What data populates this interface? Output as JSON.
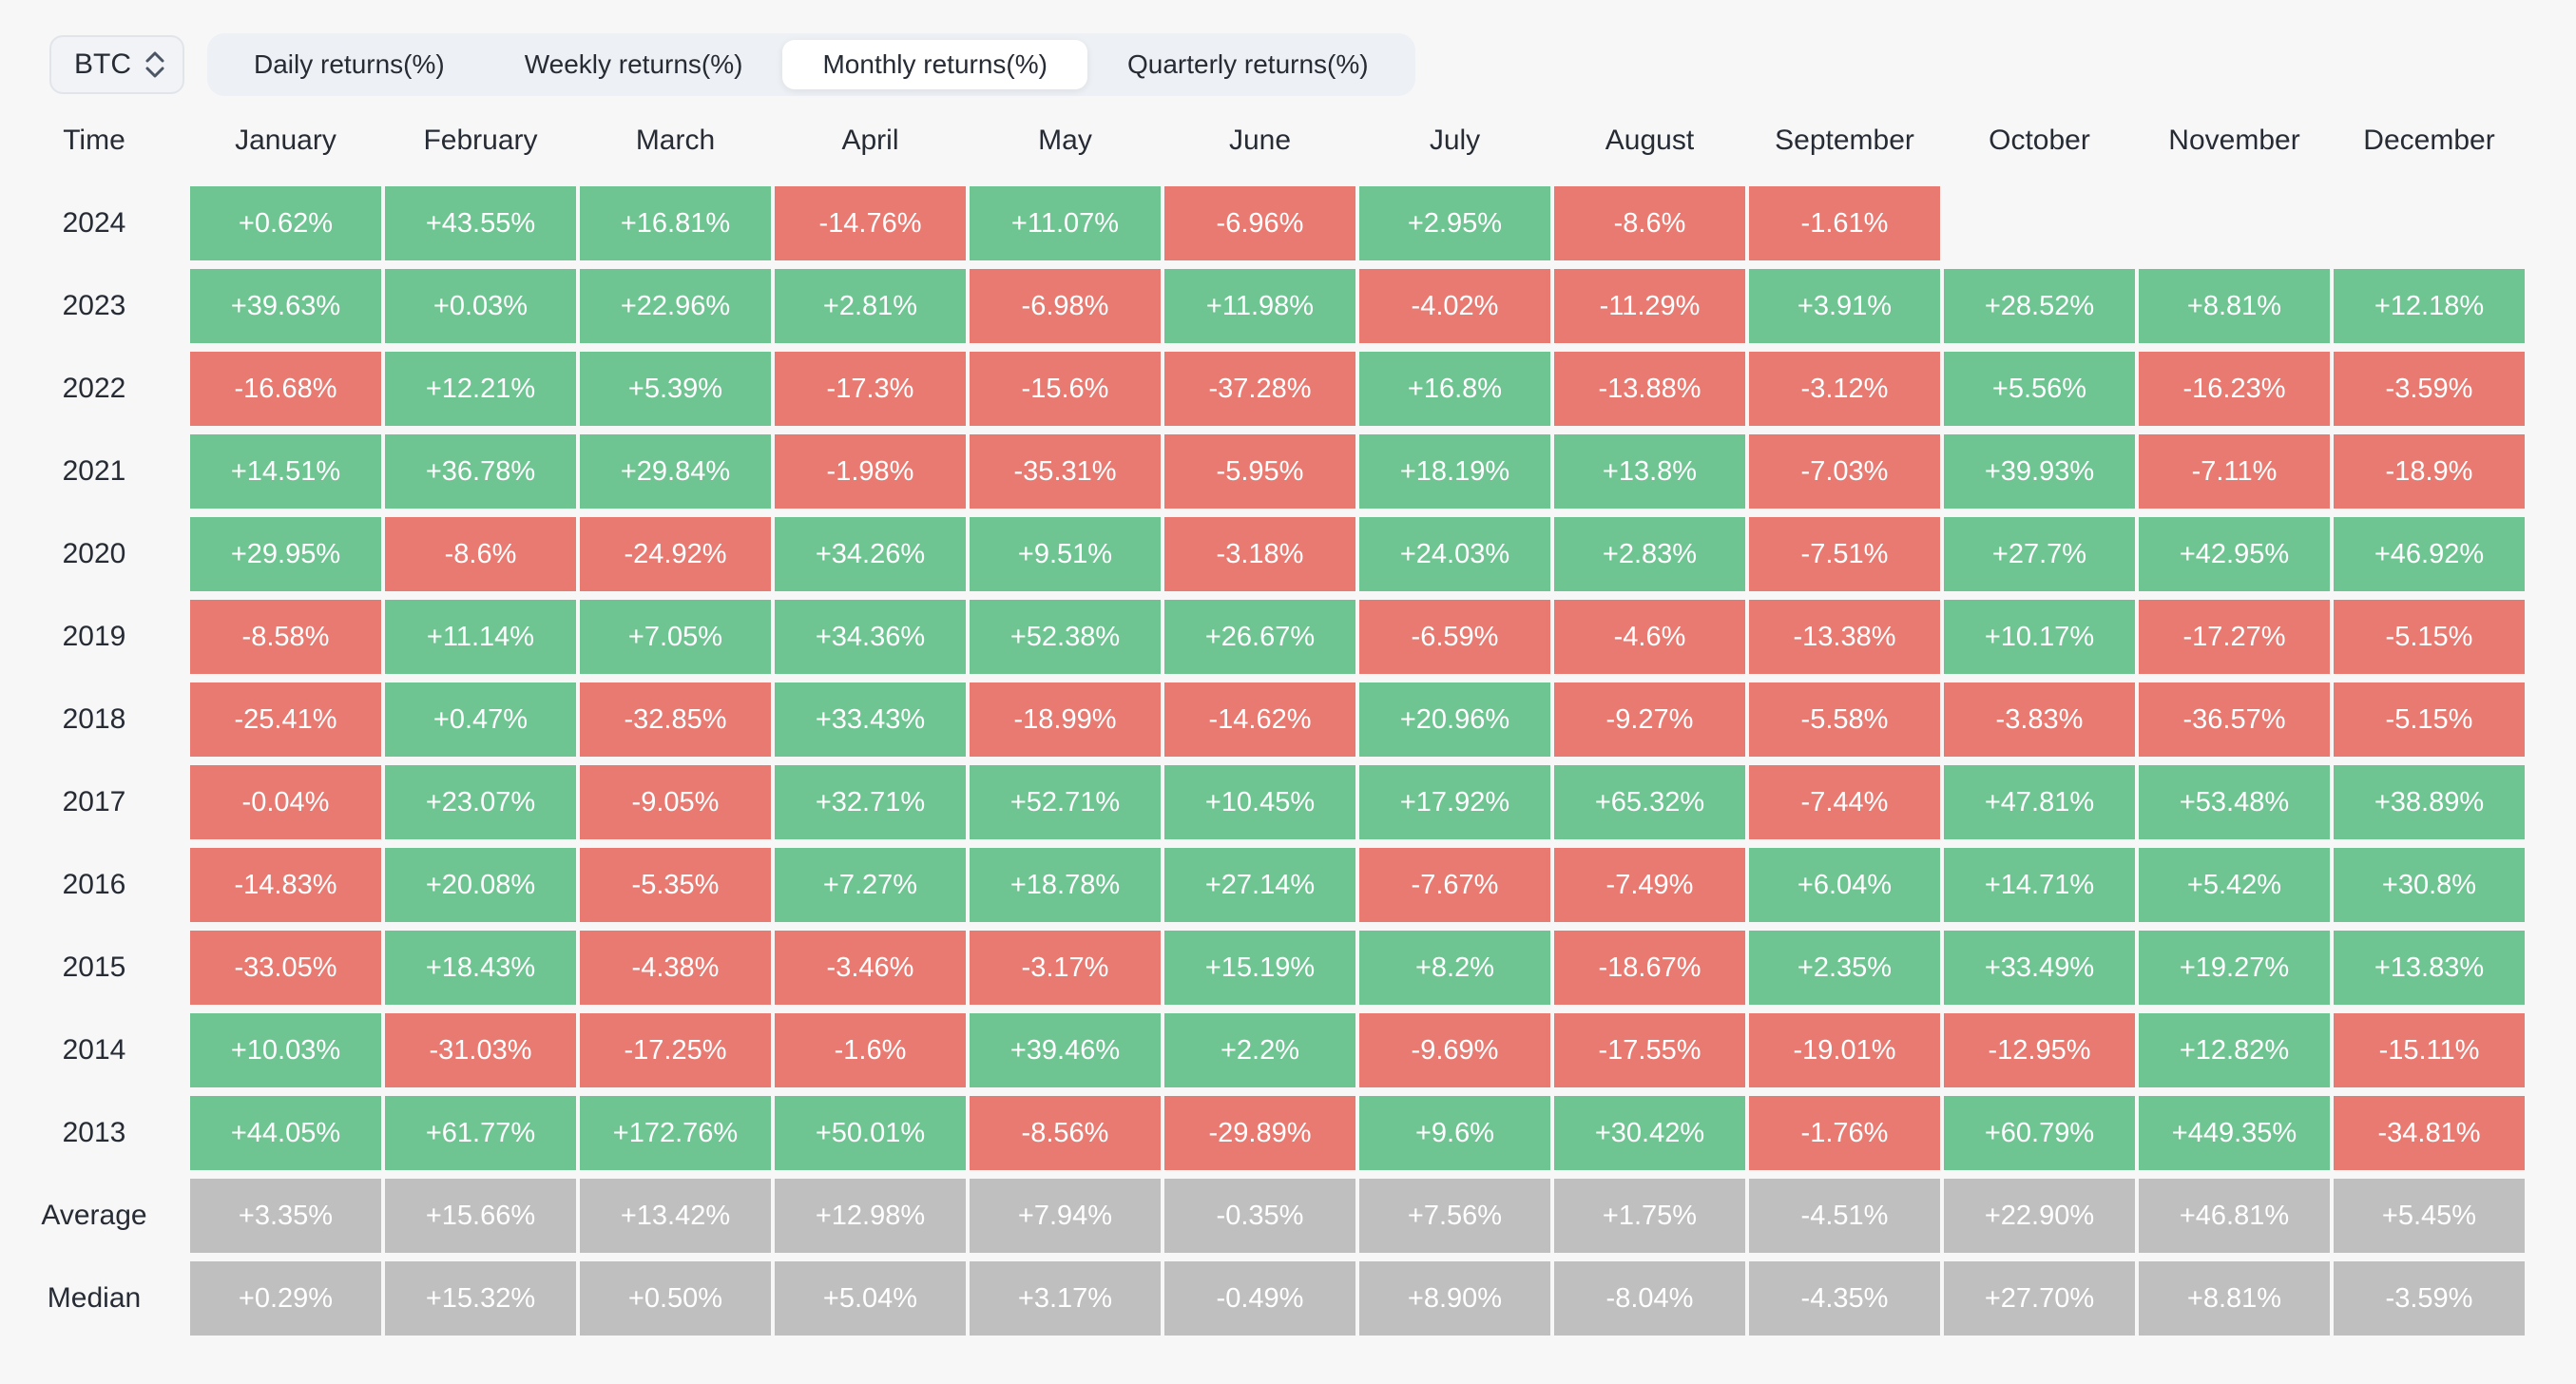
{
  "header": {
    "asset_selector": {
      "value": "BTC",
      "icon": "updown-chevron-icon"
    },
    "tabs": [
      {
        "label": "Daily returns(%)",
        "active": false
      },
      {
        "label": "Weekly returns(%)",
        "active": false
      },
      {
        "label": "Monthly returns(%)",
        "active": true
      },
      {
        "label": "Quarterly returns(%)",
        "active": false
      }
    ]
  },
  "colors": {
    "positive": "#6FC592",
    "negative": "#E97A72",
    "summary": "#BFBFBF",
    "page-bg": "#F7F7F8",
    "tabbar-bg": "#EDF0F4",
    "pill-bg": "#FFFFFF",
    "text-dark": "#262B34",
    "cell-text": "#FFFFFF",
    "select-bg": "#F1F3F6",
    "select-border": "#E1E5EA"
  },
  "chart_data": {
    "type": "heatmap",
    "title": "Monthly returns(%)",
    "asset": "BTC",
    "row_header_label": "Time",
    "columns": [
      "January",
      "February",
      "March",
      "April",
      "May",
      "June",
      "July",
      "August",
      "September",
      "October",
      "November",
      "December"
    ],
    "rows": [
      {
        "label": "2024",
        "kind": "year",
        "values": [
          "+0.62%",
          "+43.55%",
          "+16.81%",
          "-14.76%",
          "+11.07%",
          "-6.96%",
          "+2.95%",
          "-8.6%",
          "-1.61%",
          null,
          null,
          null
        ]
      },
      {
        "label": "2023",
        "kind": "year",
        "values": [
          "+39.63%",
          "+0.03%",
          "+22.96%",
          "+2.81%",
          "-6.98%",
          "+11.98%",
          "-4.02%",
          "-11.29%",
          "+3.91%",
          "+28.52%",
          "+8.81%",
          "+12.18%"
        ]
      },
      {
        "label": "2022",
        "kind": "year",
        "values": [
          "-16.68%",
          "+12.21%",
          "+5.39%",
          "-17.3%",
          "-15.6%",
          "-37.28%",
          "+16.8%",
          "-13.88%",
          "-3.12%",
          "+5.56%",
          "-16.23%",
          "-3.59%"
        ]
      },
      {
        "label": "2021",
        "kind": "year",
        "values": [
          "+14.51%",
          "+36.78%",
          "+29.84%",
          "-1.98%",
          "-35.31%",
          "-5.95%",
          "+18.19%",
          "+13.8%",
          "-7.03%",
          "+39.93%",
          "-7.11%",
          "-18.9%"
        ]
      },
      {
        "label": "2020",
        "kind": "year",
        "values": [
          "+29.95%",
          "-8.6%",
          "-24.92%",
          "+34.26%",
          "+9.51%",
          "-3.18%",
          "+24.03%",
          "+2.83%",
          "-7.51%",
          "+27.7%",
          "+42.95%",
          "+46.92%"
        ]
      },
      {
        "label": "2019",
        "kind": "year",
        "values": [
          "-8.58%",
          "+11.14%",
          "+7.05%",
          "+34.36%",
          "+52.38%",
          "+26.67%",
          "-6.59%",
          "-4.6%",
          "-13.38%",
          "+10.17%",
          "-17.27%",
          "-5.15%"
        ]
      },
      {
        "label": "2018",
        "kind": "year",
        "values": [
          "-25.41%",
          "+0.47%",
          "-32.85%",
          "+33.43%",
          "-18.99%",
          "-14.62%",
          "+20.96%",
          "-9.27%",
          "-5.58%",
          "-3.83%",
          "-36.57%",
          "-5.15%"
        ]
      },
      {
        "label": "2017",
        "kind": "year",
        "values": [
          "-0.04%",
          "+23.07%",
          "-9.05%",
          "+32.71%",
          "+52.71%",
          "+10.45%",
          "+17.92%",
          "+65.32%",
          "-7.44%",
          "+47.81%",
          "+53.48%",
          "+38.89%"
        ]
      },
      {
        "label": "2016",
        "kind": "year",
        "values": [
          "-14.83%",
          "+20.08%",
          "-5.35%",
          "+7.27%",
          "+18.78%",
          "+27.14%",
          "-7.67%",
          "-7.49%",
          "+6.04%",
          "+14.71%",
          "+5.42%",
          "+30.8%"
        ]
      },
      {
        "label": "2015",
        "kind": "year",
        "values": [
          "-33.05%",
          "+18.43%",
          "-4.38%",
          "-3.46%",
          "-3.17%",
          "+15.19%",
          "+8.2%",
          "-18.67%",
          "+2.35%",
          "+33.49%",
          "+19.27%",
          "+13.83%"
        ]
      },
      {
        "label": "2014",
        "kind": "year",
        "values": [
          "+10.03%",
          "-31.03%",
          "-17.25%",
          "-1.6%",
          "+39.46%",
          "+2.2%",
          "-9.69%",
          "-17.55%",
          "-19.01%",
          "-12.95%",
          "+12.82%",
          "-15.11%"
        ]
      },
      {
        "label": "2013",
        "kind": "year",
        "values": [
          "+44.05%",
          "+61.77%",
          "+172.76%",
          "+50.01%",
          "-8.56%",
          "-29.89%",
          "+9.6%",
          "+30.42%",
          "-1.76%",
          "+60.79%",
          "+449.35%",
          "-34.81%"
        ]
      },
      {
        "label": "Average",
        "kind": "summary",
        "values": [
          "+3.35%",
          "+15.66%",
          "+13.42%",
          "+12.98%",
          "+7.94%",
          "-0.35%",
          "+7.56%",
          "+1.75%",
          "-4.51%",
          "+22.90%",
          "+46.81%",
          "+5.45%"
        ]
      },
      {
        "label": "Median",
        "kind": "summary",
        "values": [
          "+0.29%",
          "+15.32%",
          "+0.50%",
          "+5.04%",
          "+3.17%",
          "-0.49%",
          "+8.90%",
          "-8.04%",
          "-4.35%",
          "+27.70%",
          "+8.81%",
          "-3.59%"
        ]
      }
    ]
  }
}
